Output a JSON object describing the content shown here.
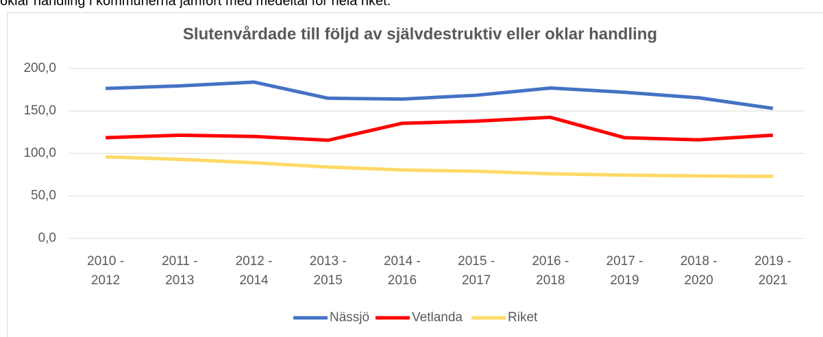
{
  "intro_text": "oklar handling i kommunerna jämfört med medeltal för hela riket.",
  "chart_data": {
    "type": "line",
    "title": "Slutenvårdade till följd av självdestruktiv eller oklar handling",
    "categories": [
      [
        "2010  -",
        "2012"
      ],
      [
        "2011 -",
        "2013"
      ],
      [
        "2012 -",
        "2014"
      ],
      [
        "2013 -",
        "2015"
      ],
      [
        "2014 -",
        "2016"
      ],
      [
        "2015 -",
        "2017"
      ],
      [
        "2016 -",
        "2018"
      ],
      [
        "2017 -",
        "2019"
      ],
      [
        "2018 -",
        "2020"
      ],
      [
        "2019 -",
        "2021"
      ]
    ],
    "series": [
      {
        "name": "Nässjö",
        "color": "#4472c4",
        "values": [
          176.5,
          179.5,
          184,
          165,
          164,
          168.5,
          177,
          172,
          165.5,
          153
        ]
      },
      {
        "name": "Vetlanda",
        "color": "#ff0000",
        "values": [
          118.5,
          121.5,
          120,
          115.5,
          135.5,
          138,
          142.5,
          118.5,
          116,
          121.5
        ]
      },
      {
        "name": "Riket",
        "color": "#ffd966",
        "values": [
          96,
          93,
          89,
          84,
          80.5,
          79,
          76,
          74.5,
          73.5,
          73
        ]
      }
    ],
    "ylim": [
      0,
      200
    ],
    "yticks": [
      {
        "value": 0,
        "label": "0,0"
      },
      {
        "value": 50,
        "label": "50,0"
      },
      {
        "value": 100,
        "label": "100,0"
      },
      {
        "value": 150,
        "label": "150,0"
      },
      {
        "value": 200,
        "label": "200,0"
      }
    ],
    "grid": true,
    "legend": "bottom"
  }
}
